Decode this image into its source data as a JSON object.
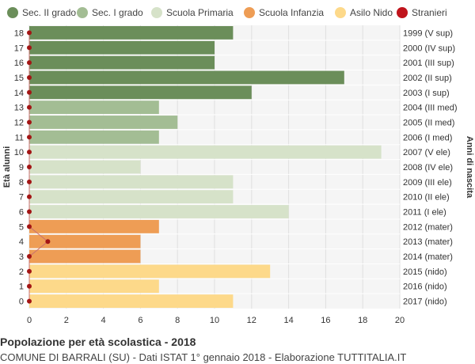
{
  "chart_data": {
    "type": "bar",
    "orientation": "horizontal",
    "title": "Popolazione per età scolastica - 2018",
    "subtitle": "COMUNE DI BARRALI (SU) - Dati ISTAT 1° gennaio 2018 - Elaborazione TUTTITALIA.IT",
    "ylabel_left": "Età alunni",
    "ylabel_right": "Anni di nascita",
    "xlim": [
      0,
      20
    ],
    "x_ticks": [
      0,
      2,
      4,
      6,
      8,
      10,
      12,
      14,
      16,
      18,
      20
    ],
    "grid": true,
    "legend_position": "top",
    "legend": [
      {
        "name": "Sec. II grado",
        "color": "#6b8e5a"
      },
      {
        "name": "Sec. I grado",
        "color": "#a3bd94"
      },
      {
        "name": "Scuola Primaria",
        "color": "#d6e2c9"
      },
      {
        "name": "Scuola Infanzia",
        "color": "#ee9d55"
      },
      {
        "name": "Asilo Nido",
        "color": "#fdd98a"
      },
      {
        "name": "Stranieri",
        "color": "#c0141c"
      }
    ],
    "rows": [
      {
        "age": "18",
        "birth": "1999 (V sup)",
        "value": 11,
        "group": 0,
        "stranieri": 0
      },
      {
        "age": "17",
        "birth": "2000 (IV sup)",
        "value": 10,
        "group": 0,
        "stranieri": 0
      },
      {
        "age": "16",
        "birth": "2001 (III sup)",
        "value": 10,
        "group": 0,
        "stranieri": 0
      },
      {
        "age": "15",
        "birth": "2002 (II sup)",
        "value": 17,
        "group": 0,
        "stranieri": 0
      },
      {
        "age": "14",
        "birth": "2003 (I sup)",
        "value": 12,
        "group": 0,
        "stranieri": 0
      },
      {
        "age": "13",
        "birth": "2004 (III med)",
        "value": 7,
        "group": 1,
        "stranieri": 0
      },
      {
        "age": "12",
        "birth": "2005 (II med)",
        "value": 8,
        "group": 1,
        "stranieri": 0
      },
      {
        "age": "11",
        "birth": "2006 (I med)",
        "value": 7,
        "group": 1,
        "stranieri": 0
      },
      {
        "age": "10",
        "birth": "2007 (V ele)",
        "value": 19,
        "group": 2,
        "stranieri": 0
      },
      {
        "age": "9",
        "birth": "2008 (IV ele)",
        "value": 6,
        "group": 2,
        "stranieri": 0
      },
      {
        "age": "8",
        "birth": "2009 (III ele)",
        "value": 11,
        "group": 2,
        "stranieri": 0
      },
      {
        "age": "7",
        "birth": "2010 (II ele)",
        "value": 11,
        "group": 2,
        "stranieri": 0
      },
      {
        "age": "6",
        "birth": "2011 (I ele)",
        "value": 14,
        "group": 2,
        "stranieri": 0
      },
      {
        "age": "5",
        "birth": "2012 (mater)",
        "value": 7,
        "group": 3,
        "stranieri": 0
      },
      {
        "age": "4",
        "birth": "2013 (mater)",
        "value": 6,
        "group": 3,
        "stranieri": 1
      },
      {
        "age": "3",
        "birth": "2014 (mater)",
        "value": 6,
        "group": 3,
        "stranieri": 0
      },
      {
        "age": "2",
        "birth": "2015 (nido)",
        "value": 13,
        "group": 4,
        "stranieri": 0
      },
      {
        "age": "1",
        "birth": "2016 (nido)",
        "value": 7,
        "group": 4,
        "stranieri": 0
      },
      {
        "age": "0",
        "birth": "2017 (nido)",
        "value": 11,
        "group": 4,
        "stranieri": 0
      }
    ]
  }
}
